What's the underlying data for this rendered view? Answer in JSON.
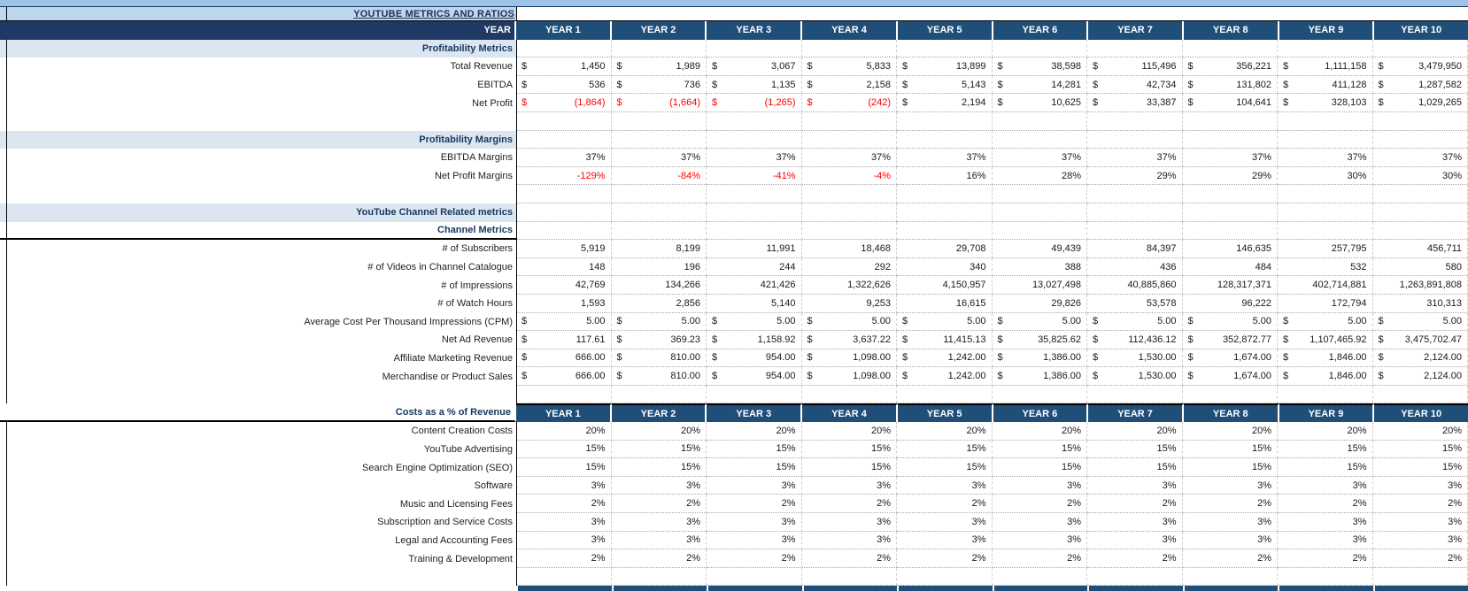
{
  "title": "YOUTUBE METRICS AND RATIOS",
  "year_label": "YEAR",
  "years": [
    "YEAR 1",
    "YEAR 2",
    "YEAR 3",
    "YEAR 4",
    "YEAR 5",
    "YEAR 6",
    "YEAR 7",
    "YEAR 8",
    "YEAR 9",
    "YEAR 10"
  ],
  "colors": {
    "header_navy_dark": "#203864",
    "header_navy": "#1F4E79",
    "top_band_blue": "#9DC3E6",
    "title_band_blue": "#BDD7EE",
    "section_band_blue": "#DCE6F1",
    "negative_red": "#FF0000"
  },
  "rows": [
    {
      "kind": "yearheader"
    },
    {
      "kind": "section",
      "label": "Profitability Metrics"
    },
    {
      "kind": "currency",
      "label": "Total Revenue",
      "values": [
        "1,450",
        "1,989",
        "3,067",
        "5,833",
        "13,899",
        "38,598",
        "115,496",
        "356,221",
        "1,111,158",
        "3,479,950"
      ]
    },
    {
      "kind": "currency",
      "label": "EBITDA",
      "values": [
        "536",
        "736",
        "1,135",
        "2,158",
        "5,143",
        "14,281",
        "42,734",
        "131,802",
        "411,128",
        "1,287,582"
      ]
    },
    {
      "kind": "currency",
      "label": "Net Profit",
      "values": [
        "(1,864)",
        "(1,664)",
        "(1,265)",
        "(242)",
        "2,194",
        "10,625",
        "33,387",
        "104,641",
        "328,103",
        "1,029,265"
      ],
      "negative": [
        1,
        1,
        1,
        1,
        0,
        0,
        0,
        0,
        0,
        0
      ]
    },
    {
      "kind": "blank"
    },
    {
      "kind": "section",
      "label": "Profitability Margins"
    },
    {
      "kind": "value",
      "label": "EBITDA Margins",
      "values": [
        "37%",
        "37%",
        "37%",
        "37%",
        "37%",
        "37%",
        "37%",
        "37%",
        "37%",
        "37%"
      ]
    },
    {
      "kind": "value",
      "label": "Net Profit Margins",
      "values": [
        "-129%",
        "-84%",
        "-41%",
        "-4%",
        "16%",
        "28%",
        "29%",
        "29%",
        "30%",
        "30%"
      ],
      "negative": [
        1,
        1,
        1,
        1,
        0,
        0,
        0,
        0,
        0,
        0
      ]
    },
    {
      "kind": "blank"
    },
    {
      "kind": "section",
      "label": "YouTube Channel Related metrics"
    },
    {
      "kind": "subheader",
      "label": "Channel Metrics"
    },
    {
      "kind": "value",
      "label": "# of Subscribers",
      "values": [
        "5,919",
        "8,199",
        "11,991",
        "18,468",
        "29,708",
        "49,439",
        "84,397",
        "146,635",
        "257,795",
        "456,711"
      ]
    },
    {
      "kind": "value",
      "label": "# of Videos in Channel Catalogue",
      "values": [
        "148",
        "196",
        "244",
        "292",
        "340",
        "388",
        "436",
        "484",
        "532",
        "580"
      ]
    },
    {
      "kind": "value",
      "label": "# of Impressions",
      "values": [
        "42,769",
        "134,266",
        "421,426",
        "1,322,626",
        "4,150,957",
        "13,027,498",
        "40,885,860",
        "128,317,371",
        "402,714,881",
        "1,263,891,808"
      ]
    },
    {
      "kind": "value",
      "label": "# of Watch Hours",
      "values": [
        "1,593",
        "2,856",
        "5,140",
        "9,253",
        "16,615",
        "29,826",
        "53,578",
        "96,222",
        "172,794",
        "310,313"
      ]
    },
    {
      "kind": "currency",
      "label": "Average Cost Per Thousand Impressions (CPM)",
      "values": [
        "5.00",
        "5.00",
        "5.00",
        "5.00",
        "5.00",
        "5.00",
        "5.00",
        "5.00",
        "5.00",
        "5.00"
      ]
    },
    {
      "kind": "currency",
      "label": "Net Ad Revenue",
      "values": [
        "117.61",
        "369.23",
        "1,158.92",
        "3,637.22",
        "11,415.13",
        "35,825.62",
        "112,436.12",
        "352,872.77",
        "1,107,465.92",
        "3,475,702.47"
      ]
    },
    {
      "kind": "currency",
      "label": "Affiliate Marketing Revenue",
      "values": [
        "666.00",
        "810.00",
        "954.00",
        "1,098.00",
        "1,242.00",
        "1,386.00",
        "1,530.00",
        "1,674.00",
        "1,846.00",
        "2,124.00"
      ]
    },
    {
      "kind": "currency",
      "label": "Merchandise or Product Sales",
      "values": [
        "666.00",
        "810.00",
        "954.00",
        "1,098.00",
        "1,242.00",
        "1,386.00",
        "1,530.00",
        "1,674.00",
        "1,846.00",
        "2,124.00"
      ]
    },
    {
      "kind": "blank"
    },
    {
      "kind": "yearheader2",
      "label": "Costs as a % of Revenue"
    },
    {
      "kind": "value",
      "label": "Content Creation Costs",
      "values": [
        "20%",
        "20%",
        "20%",
        "20%",
        "20%",
        "20%",
        "20%",
        "20%",
        "20%",
        "20%"
      ]
    },
    {
      "kind": "value",
      "label": "YouTube Advertising",
      "values": [
        "15%",
        "15%",
        "15%",
        "15%",
        "15%",
        "15%",
        "15%",
        "15%",
        "15%",
        "15%"
      ]
    },
    {
      "kind": "value",
      "label": "Search Engine Optimization (SEO)",
      "values": [
        "15%",
        "15%",
        "15%",
        "15%",
        "15%",
        "15%",
        "15%",
        "15%",
        "15%",
        "15%"
      ]
    },
    {
      "kind": "value",
      "label": "Software",
      "values": [
        "3%",
        "3%",
        "3%",
        "3%",
        "3%",
        "3%",
        "3%",
        "3%",
        "3%",
        "3%"
      ]
    },
    {
      "kind": "value",
      "label": "Music and Licensing Fees",
      "values": [
        "2%",
        "2%",
        "2%",
        "2%",
        "2%",
        "2%",
        "2%",
        "2%",
        "2%",
        "2%"
      ]
    },
    {
      "kind": "value",
      "label": "Subscription and Service Costs",
      "values": [
        "3%",
        "3%",
        "3%",
        "3%",
        "3%",
        "3%",
        "3%",
        "3%",
        "3%",
        "3%"
      ]
    },
    {
      "kind": "value",
      "label": "Legal and Accounting Fees",
      "values": [
        "3%",
        "3%",
        "3%",
        "3%",
        "3%",
        "3%",
        "3%",
        "3%",
        "3%",
        "3%"
      ]
    },
    {
      "kind": "value",
      "label": "Training & Development",
      "values": [
        "2%",
        "2%",
        "2%",
        "2%",
        "2%",
        "2%",
        "2%",
        "2%",
        "2%",
        "2%"
      ]
    },
    {
      "kind": "blank"
    },
    {
      "kind": "strip"
    }
  ]
}
